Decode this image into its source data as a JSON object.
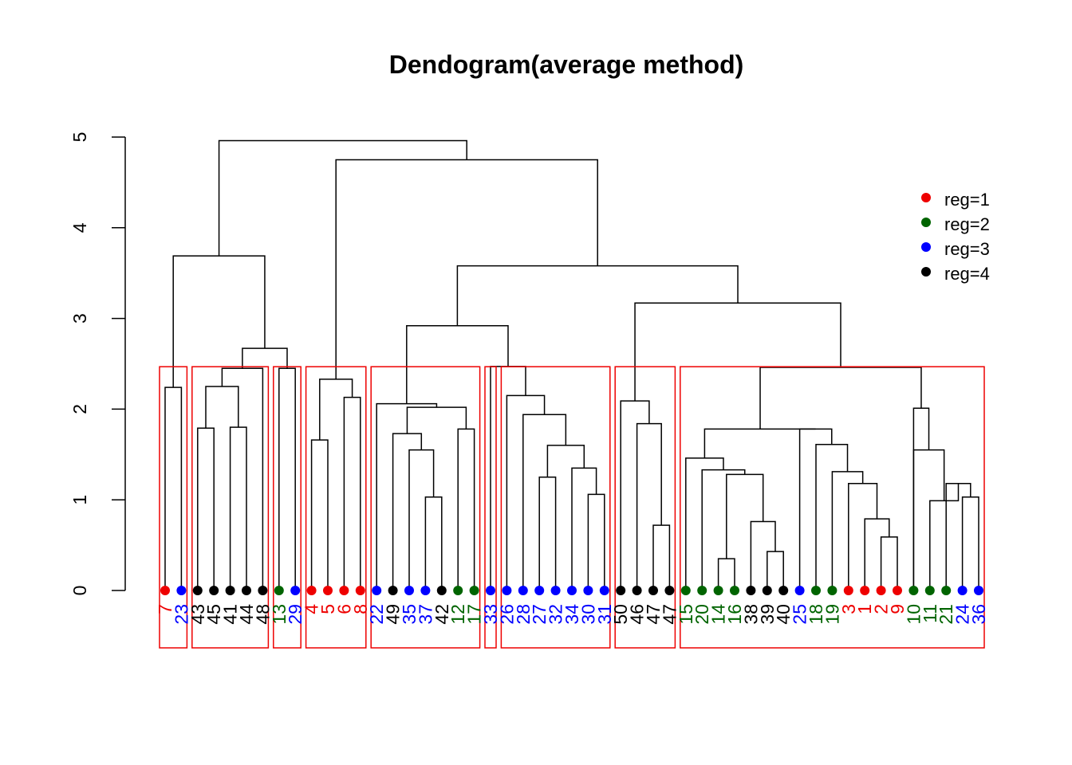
{
  "chart_data": {
    "type": "dendrogram",
    "title": "Dendogram(average method)",
    "ylim": [
      0,
      5
    ],
    "yticks": [
      0,
      1,
      2,
      3,
      4,
      5
    ],
    "legend": {
      "placement": "top-right",
      "entries": [
        {
          "label": "reg=1",
          "color": "#ee0000"
        },
        {
          "label": "reg=2",
          "color": "#006400"
        },
        {
          "label": "reg=3",
          "color": "#0000ff"
        },
        {
          "label": "reg=4",
          "color": "#000000"
        }
      ]
    },
    "reg_colors": {
      "1": "#ee0000",
      "2": "#006400",
      "3": "#0000ff",
      "4": "#000000"
    },
    "leaves": [
      {
        "label": "7",
        "reg": 1
      },
      {
        "label": "23",
        "reg": 3
      },
      {
        "label": "43",
        "reg": 4
      },
      {
        "label": "45",
        "reg": 4
      },
      {
        "label": "41",
        "reg": 4
      },
      {
        "label": "44",
        "reg": 4
      },
      {
        "label": "48",
        "reg": 4
      },
      {
        "label": "13",
        "reg": 2
      },
      {
        "label": "29",
        "reg": 3
      },
      {
        "label": "4",
        "reg": 1
      },
      {
        "label": "5",
        "reg": 1
      },
      {
        "label": "6",
        "reg": 1
      },
      {
        "label": "8",
        "reg": 1
      },
      {
        "label": "22",
        "reg": 3
      },
      {
        "label": "49",
        "reg": 4
      },
      {
        "label": "35",
        "reg": 3
      },
      {
        "label": "37",
        "reg": 3
      },
      {
        "label": "42",
        "reg": 4
      },
      {
        "label": "12",
        "reg": 2
      },
      {
        "label": "17",
        "reg": 2
      },
      {
        "label": "33",
        "reg": 3
      },
      {
        "label": "26",
        "reg": 3
      },
      {
        "label": "28",
        "reg": 3
      },
      {
        "label": "27",
        "reg": 3
      },
      {
        "label": "32",
        "reg": 3
      },
      {
        "label": "34",
        "reg": 3
      },
      {
        "label": "30",
        "reg": 3
      },
      {
        "label": "31",
        "reg": 3
      },
      {
        "label": "50",
        "reg": 4
      },
      {
        "label": "46",
        "reg": 4
      },
      {
        "label": "47",
        "reg": 4
      },
      {
        "label": "47",
        "reg": 4
      },
      {
        "label": "15",
        "reg": 2
      },
      {
        "label": "20",
        "reg": 2
      },
      {
        "label": "14",
        "reg": 2
      },
      {
        "label": "16",
        "reg": 2
      },
      {
        "label": "38",
        "reg": 4
      },
      {
        "label": "39",
        "reg": 4
      },
      {
        "label": "40",
        "reg": 4
      },
      {
        "label": "25",
        "reg": 3
      },
      {
        "label": "18",
        "reg": 2
      },
      {
        "label": "19",
        "reg": 2
      },
      {
        "label": "3",
        "reg": 1
      },
      {
        "label": "1",
        "reg": 1
      },
      {
        "label": "2",
        "reg": 1
      },
      {
        "label": "9",
        "reg": 1
      },
      {
        "label": "10",
        "reg": 2
      },
      {
        "label": "11",
        "reg": 2
      },
      {
        "label": "21",
        "reg": 2
      },
      {
        "label": "24",
        "reg": 3
      },
      {
        "label": "36",
        "reg": 3
      }
    ],
    "merges": [
      {
        "id": "a",
        "children": [
          0,
          1
        ],
        "height": 2.24
      },
      {
        "id": "b1",
        "children": [
          2,
          3
        ],
        "height": 1.79
      },
      {
        "id": "b2",
        "children": [
          4,
          5
        ],
        "height": 1.8
      },
      {
        "id": "b3",
        "children": [
          "b1",
          "b2"
        ],
        "height": 2.25
      },
      {
        "id": "b",
        "children": [
          "b3",
          6
        ],
        "height": 2.45
      },
      {
        "id": "c",
        "children": [
          7,
          8
        ],
        "height": 2.45
      },
      {
        "id": "bc",
        "children": [
          "b",
          "c"
        ],
        "height": 2.67
      },
      {
        "id": "abc",
        "children": [
          "a",
          "bc"
        ],
        "height": 3.69
      },
      {
        "id": "d1",
        "children": [
          9,
          10
        ],
        "height": 1.66
      },
      {
        "id": "d2",
        "children": [
          11,
          12
        ],
        "height": 2.13
      },
      {
        "id": "d",
        "children": [
          "d1",
          "d2"
        ],
        "height": 2.33
      },
      {
        "id": "e1",
        "children": [
          16,
          17
        ],
        "height": 1.03
      },
      {
        "id": "e2",
        "children": [
          15,
          "e1"
        ],
        "height": 1.55
      },
      {
        "id": "e3",
        "children": [
          14,
          "e2"
        ],
        "height": 1.73
      },
      {
        "id": "e4",
        "children": [
          18,
          19
        ],
        "height": 1.78
      },
      {
        "id": "e5",
        "children": [
          "e3",
          "e4"
        ],
        "height": 2.02
      },
      {
        "id": "e",
        "children": [
          13,
          "e5"
        ],
        "height": 2.06
      },
      {
        "id": "f1",
        "children": [
          23,
          24
        ],
        "height": 1.25
      },
      {
        "id": "f2",
        "children": [
          26,
          27
        ],
        "height": 1.06
      },
      {
        "id": "f3",
        "children": [
          25,
          "f2"
        ],
        "height": 1.35
      },
      {
        "id": "f4",
        "children": [
          "f1",
          "f3"
        ],
        "height": 1.6
      },
      {
        "id": "f5",
        "children": [
          22,
          "f4"
        ],
        "height": 1.94
      },
      {
        "id": "f6",
        "children": [
          21,
          "f5"
        ],
        "height": 2.15
      },
      {
        "id": "f",
        "children": [
          20,
          "f6"
        ],
        "height": 2.47
      },
      {
        "id": "ef",
        "children": [
          "e",
          "f"
        ],
        "height": 2.92
      },
      {
        "id": "g1",
        "children": [
          30,
          31
        ],
        "height": 0.72
      },
      {
        "id": "g2",
        "children": [
          29,
          "g1"
        ],
        "height": 1.84
      },
      {
        "id": "g",
        "children": [
          28,
          "g2"
        ],
        "height": 2.09
      },
      {
        "id": "h1",
        "children": [
          34,
          35
        ],
        "height": 0.35
      },
      {
        "id": "h2",
        "children": [
          37,
          38
        ],
        "height": 0.43
      },
      {
        "id": "h3",
        "children": [
          36,
          "h2"
        ],
        "height": 0.76
      },
      {
        "id": "h4",
        "children": [
          "h1",
          "h3"
        ],
        "height": 1.28
      },
      {
        "id": "h5",
        "children": [
          33,
          "h4"
        ],
        "height": 1.33
      },
      {
        "id": "h6",
        "children": [
          32,
          "h5"
        ],
        "height": 1.46
      },
      {
        "id": "h7",
        "children": [
          44,
          45
        ],
        "height": 0.59
      },
      {
        "id": "h8",
        "children": [
          43,
          "h7"
        ],
        "height": 0.79
      },
      {
        "id": "h9",
        "children": [
          42,
          "h8"
        ],
        "height": 1.18
      },
      {
        "id": "h10",
        "children": [
          41,
          "h9"
        ],
        "height": 1.31
      },
      {
        "id": "h11",
        "children": [
          40,
          "h10"
        ],
        "height": 1.61
      },
      {
        "id": "h12",
        "children": [
          39,
          "h11"
        ],
        "height": 1.78
      },
      {
        "id": "h13",
        "children": [
          "h6",
          "h12"
        ],
        "height": 1.78
      },
      {
        "id": "h14",
        "children": [
          49,
          50
        ],
        "height": 1.03
      },
      {
        "id": "h15",
        "children": [
          48,
          "h14"
        ],
        "height": 1.18
      },
      {
        "id": "h16",
        "children": [
          47,
          "h15"
        ],
        "height": 0.99
      },
      {
        "id": "h17",
        "children": [
          46,
          "h16"
        ],
        "height": 1.55
      },
      {
        "id": "h18",
        "children": [
          "h17",
          46
        ],
        "height": 2.01
      },
      {
        "id": "h",
        "children": [
          "h13",
          "h18"
        ],
        "height": 2.46
      },
      {
        "id": "gh",
        "children": [
          "g",
          "h"
        ],
        "height": 3.17
      },
      {
        "id": "efgh",
        "children": [
          "ef",
          "gh"
        ],
        "height": 3.58
      },
      {
        "id": "defgh",
        "children": [
          "d",
          "efgh"
        ],
        "height": 4.75
      },
      {
        "id": "root",
        "children": [
          "abc",
          "defgh"
        ],
        "height": 4.96
      }
    ],
    "cut_height": 2.45,
    "cluster_boxes": [
      [
        0,
        1
      ],
      [
        2,
        6
      ],
      [
        7,
        8
      ],
      [
        9,
        12
      ],
      [
        13,
        19
      ],
      [
        20,
        20
      ],
      [
        21,
        27
      ],
      [
        28,
        31
      ],
      [
        32,
        50
      ]
    ]
  }
}
